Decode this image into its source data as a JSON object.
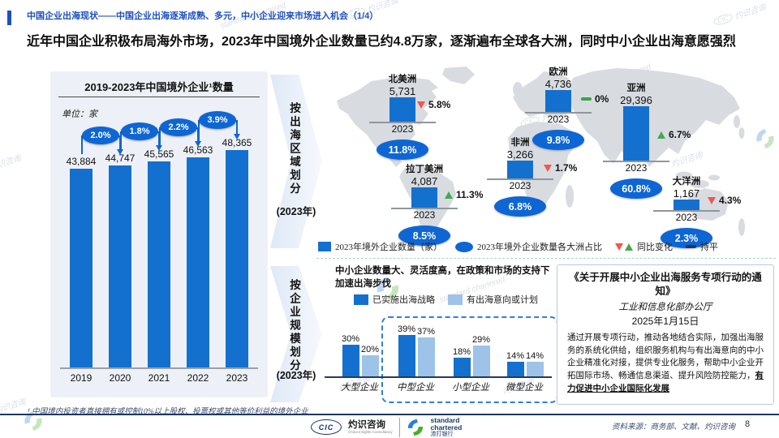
{
  "header": {
    "kicker": "中国企业出海现状——中国企业出海逐渐成熟、多元，中小企业迎来市场进入机会（1/4）",
    "title": "近年中国企业积极布局海外市场，2023年中国境外企业数量已约4.8万家，逐渐遍布全球各大洲，同时中小企业出海意愿强烈"
  },
  "left_chart": {
    "title": "2019-2023年中国境外企业¹数量",
    "unit": "单位：家",
    "years": [
      "2019",
      "2020",
      "2021",
      "2022",
      "2023"
    ],
    "value_labels": [
      "43,884",
      "44,747",
      "45,565",
      "46,563",
      "48,365"
    ],
    "growth_labels": [
      "2.0%",
      "1.8%",
      "2.2%",
      "3.9%"
    ]
  },
  "dividers": {
    "top_label": "按出海区域划分",
    "top_year": "(2023年)",
    "bottom_label": "按企业规模划分",
    "bottom_year": "(2023年)"
  },
  "map": {
    "regions": [
      {
        "name": "北美洲",
        "value": "5,731",
        "year": "2023",
        "change": "5.8%",
        "trend": "down",
        "share": "11.8%"
      },
      {
        "name": "欧洲",
        "value": "4,736",
        "year": "2023",
        "change": "0%",
        "trend": "flat",
        "share": "9.8%"
      },
      {
        "name": "亚洲",
        "value": "29,396",
        "year": "2023",
        "change": "6.7%",
        "trend": "up",
        "share": "60.8%"
      },
      {
        "name": "拉丁美洲",
        "value": "4,087",
        "year": "2023",
        "change": "11.3%",
        "trend": "up",
        "share": "8.5%"
      },
      {
        "name": "非洲",
        "value": "3,266",
        "year": "2023",
        "change": "1.7%",
        "trend": "down",
        "share": "6.8%"
      },
      {
        "name": "大洋洲",
        "value": "1,167",
        "year": "2023",
        "change": "4.3%",
        "trend": "down",
        "share": "2.3%"
      }
    ],
    "legend": {
      "bar_label": "2023年境外企业数量（家）",
      "oval_label": "2023年境外企业数量各大洲占比",
      "change_label": "同比变化",
      "flat_label": "持平"
    }
  },
  "sme": {
    "note": "中小企业数量大、灵活度高，在政策和市场的支持下加速出海步伐",
    "legend": [
      "已实施出海战略",
      "有出海意向或计划"
    ],
    "categories": [
      "大型企业",
      "中型企业",
      "小型企业",
      "微型企业"
    ],
    "implemented_labels": [
      "30%",
      "39%",
      "18%",
      "14%"
    ],
    "planned_labels": [
      "20%",
      "37%",
      "29%",
      "14%"
    ]
  },
  "policy": {
    "title": "《关于开展中小企业出海服务专项行动的通知》",
    "issuer": "工业和信息化部办公厅",
    "date": "2025年1月15日",
    "body": "通过开展专项行动，推动各地结合实际，加强出海服务的系统化供给，组织服务机构与有出海意向的中小企业精准化对接，提供专业化服务，帮助中小企业开拓国际市场、畅通信息渠道、提升风险防控能力，",
    "body_emphasis": "有力促进中小企业国际化发展"
  },
  "footer": {
    "footnote": "¹ 中国境内投资者直接拥有或控制10%以上股权、投票权或其他等价利益的境外企业",
    "source": "资料来源：商务部、文献、灼识咨询",
    "page": "8"
  },
  "logos": {
    "cic_mark": "CIC",
    "cic_name": "灼识咨询",
    "cic_sub": "China Insights Consultancy",
    "sc_name": "standard chartered",
    "sc_cn": "渣打银行"
  },
  "colors": {
    "primary_blue": "#1470CF",
    "badge_blue": "#0D66D4",
    "light_blue": "#9DC3E8",
    "down_red": "#F4564E",
    "up_green": "#44A94E",
    "navy": "#1F3864"
  },
  "chart_data": [
    {
      "type": "bar",
      "title": "2019-2023年中国境外企业数量",
      "ylabel": "家",
      "categories": [
        "2019",
        "2020",
        "2021",
        "2022",
        "2023"
      ],
      "values": [
        43884,
        44747,
        45565,
        46563,
        48365
      ],
      "yoy_growth_pct": [
        null,
        2.0,
        1.8,
        2.2,
        3.9
      ],
      "legend_position": "none",
      "grid": false
    },
    {
      "type": "bar",
      "title": "2023年境外企业数量按大洲分布（家）",
      "categories": [
        "北美洲",
        "欧洲",
        "亚洲",
        "拉丁美洲",
        "非洲",
        "大洋洲"
      ],
      "values": [
        5731,
        4736,
        29396,
        4087,
        3266,
        1167
      ],
      "share_pct": [
        11.8,
        9.8,
        60.8,
        8.5,
        6.8,
        2.3
      ],
      "yoy_change_pct": [
        -5.8,
        0,
        6.7,
        11.3,
        -1.7,
        -4.3
      ]
    },
    {
      "type": "bar",
      "title": "按企业规模划分的出海情况（2023年）",
      "unit": "%",
      "categories": [
        "大型企业",
        "中型企业",
        "小型企业",
        "微型企业"
      ],
      "series": [
        {
          "name": "已实施出海战略",
          "values": [
            30,
            39,
            18,
            14
          ]
        },
        {
          "name": "有出海意向或计划",
          "values": [
            20,
            37,
            29,
            14
          ]
        }
      ]
    }
  ]
}
